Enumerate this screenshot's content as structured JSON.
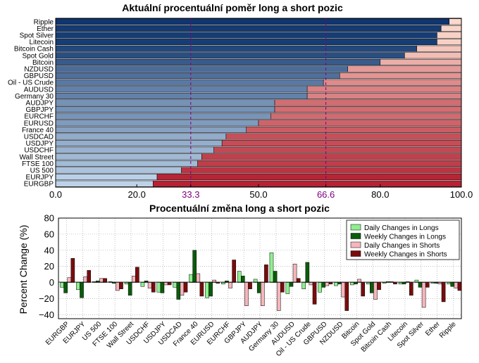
{
  "chart_data": [
    {
      "type": "bar",
      "orientation": "horizontal",
      "stacked": true,
      "title": "Aktuální procentuální poměr long a short pozic",
      "categories": [
        "Ripple",
        "Ether",
        "Spot Silver",
        "Litecoin",
        "Bitcoin Cash",
        "Spot Gold",
        "Bitcoin",
        "NZDUSD",
        "GBPUSD",
        "Oil - US Crude",
        "AUDUSD",
        "Germany 30",
        "AUDJPY",
        "GBPJPY",
        "EURCHF",
        "EURUSD",
        "France 40",
        "USDCAD",
        "USDJPY",
        "USDCHF",
        "Wall Street",
        "FTSE 100",
        "US 500",
        "EURJPY",
        "EURGBP"
      ],
      "series": [
        {
          "role": "long",
          "values": [
            97,
            95,
            94,
            94,
            89,
            86,
            80,
            72,
            70,
            66,
            62,
            62,
            54,
            54,
            53,
            50,
            47,
            42,
            41,
            39,
            36,
            35,
            31,
            25,
            24
          ]
        },
        {
          "role": "short",
          "values": [
            3,
            5,
            6,
            6,
            11,
            14,
            20,
            28,
            30,
            34,
            38,
            38,
            46,
            46,
            47,
            50,
            53,
            58,
            59,
            61,
            64,
            65,
            69,
            75,
            76
          ]
        }
      ],
      "xlim": [
        0,
        100
      ],
      "xticks": [
        "0.0",
        "20.0",
        "33.3",
        "50.0",
        "66.6",
        "80.0",
        "100.0"
      ],
      "xtick_values": [
        0,
        20,
        33.3,
        50,
        66.6,
        80,
        100
      ],
      "highlight_ticks": [
        33.3,
        66.6
      ],
      "reference_lines": [
        33.3,
        66.6
      ],
      "colors": {
        "long_dark": "#08306b",
        "long_light": "#c6dbef",
        "short_light": "#fee0d2",
        "short_dark": "#b2182b",
        "highlight": "#800080"
      }
    },
    {
      "type": "bar",
      "orientation": "vertical",
      "title": "Procentuální změna long a short pozic",
      "ylabel": "Percent Change (%)",
      "ylim": [
        -45,
        80
      ],
      "yticks": [
        "80",
        "60",
        "40",
        "20",
        "0",
        "−20",
        "−40"
      ],
      "ytick_values": [
        80,
        60,
        40,
        20,
        0,
        -20,
        -40
      ],
      "grid": true,
      "legend_position": "top-right",
      "categories": [
        "EURGBP",
        "EURJPY",
        "US 500",
        "FTSE 100",
        "Wall Street",
        "USDCHF",
        "USDJPY",
        "USDCAD",
        "France 40",
        "EURUSD",
        "EURCHF",
        "GBPJPY",
        "AUDJPY",
        "Germany 30",
        "AUDUSD",
        "Oil - US Crude",
        "GBPUSD",
        "NZDUSD",
        "Bitcoin",
        "Spot Gold",
        "Bitcoin Cash",
        "Litecoin",
        "Spot Silver",
        "Ether",
        "Ripple"
      ],
      "series": [
        {
          "name": "Daily Changes in Longs",
          "color": "#90ee90",
          "values": [
            -6,
            -9,
            1,
            1,
            -2,
            -5,
            -12,
            -6,
            10,
            -19,
            -2,
            14,
            4,
            37,
            -14,
            -8,
            -12,
            -4,
            -3,
            -2,
            -1,
            -2,
            3,
            -1,
            -2
          ]
        },
        {
          "name": "Weekly Changes in Longs",
          "color": "#0a5c0a",
          "values": [
            -13,
            -19,
            2,
            -1,
            -16,
            2,
            -13,
            -21,
            40,
            -17,
            2,
            8,
            -13,
            14,
            -5,
            25,
            -6,
            -2,
            -2,
            -13,
            1,
            -2,
            -6,
            -1,
            -5
          ]
        },
        {
          "name": "Daily Changes in Shorts",
          "color": "#f4b6bd",
          "values": [
            6,
            7,
            5,
            -10,
            8,
            -7,
            -3,
            -16,
            11,
            3,
            -7,
            -29,
            -29,
            -35,
            23,
            -3,
            -4,
            -18,
            4,
            -21,
            1,
            1,
            -31,
            -2,
            -7
          ]
        },
        {
          "name": "Weekly Changes in Shorts",
          "color": "#7a0c0c",
          "values": [
            30,
            15,
            5,
            -8,
            19,
            -12,
            -3,
            -12,
            -17,
            -1,
            28,
            -8,
            22,
            -12,
            5,
            -27,
            -2,
            -35,
            -17,
            -9,
            -2,
            -16,
            -6,
            -24,
            -10
          ]
        }
      ]
    }
  ]
}
